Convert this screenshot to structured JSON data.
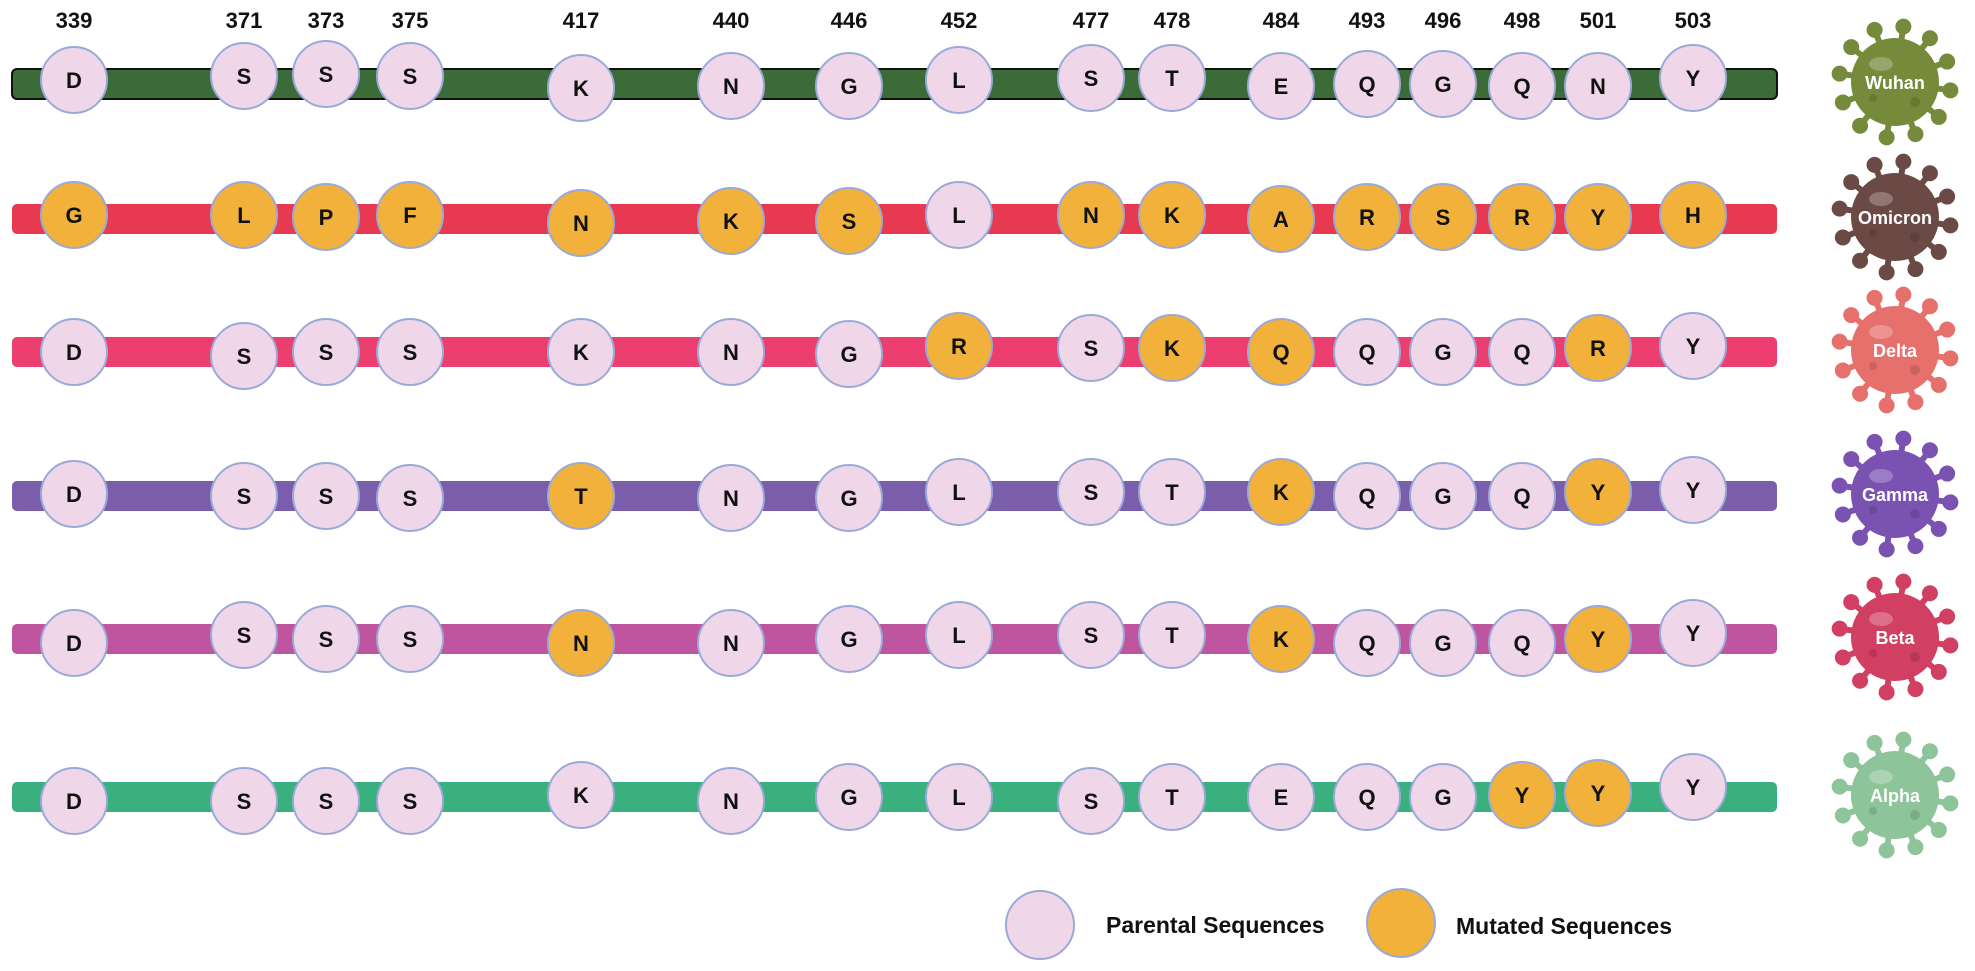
{
  "positions": [
    "339",
    "371",
    "373",
    "375",
    "417",
    "440",
    "446",
    "452",
    "477",
    "478",
    "484",
    "493",
    "496",
    "498",
    "501",
    "503"
  ],
  "variants": [
    {
      "name": "Wuhan",
      "bar_color": "#3b6b37",
      "virus_color": "#758a3a",
      "residues": [
        "D",
        "S",
        "S",
        "S",
        "K",
        "N",
        "G",
        "L",
        "S",
        "T",
        "E",
        "Q",
        "G",
        "Q",
        "N",
        "Y"
      ],
      "mutated": [
        false,
        false,
        false,
        false,
        false,
        false,
        false,
        false,
        false,
        false,
        false,
        false,
        false,
        false,
        false,
        false
      ]
    },
    {
      "name": "Omicron",
      "bar_color": "#e73a50",
      "virus_color": "#6b4a45",
      "residues": [
        "G",
        "L",
        "P",
        "F",
        "N",
        "K",
        "S",
        "L",
        "N",
        "K",
        "A",
        "R",
        "S",
        "R",
        "Y",
        "H"
      ],
      "mutated": [
        true,
        true,
        true,
        true,
        true,
        true,
        true,
        false,
        true,
        true,
        true,
        true,
        true,
        true,
        true,
        true
      ]
    },
    {
      "name": "Delta",
      "bar_color": "#ec3f70",
      "virus_color": "#e5706c",
      "residues": [
        "D",
        "S",
        "S",
        "S",
        "K",
        "N",
        "G",
        "R",
        "S",
        "K",
        "Q",
        "Q",
        "G",
        "Q",
        "R",
        "Y"
      ],
      "mutated": [
        false,
        false,
        false,
        false,
        false,
        false,
        false,
        true,
        false,
        true,
        true,
        false,
        false,
        false,
        true,
        false
      ]
    },
    {
      "name": "Gamma",
      "bar_color": "#7b5eab",
      "virus_color": "#7a52b2",
      "residues": [
        "D",
        "S",
        "S",
        "S",
        "T",
        "N",
        "G",
        "L",
        "S",
        "T",
        "K",
        "Q",
        "G",
        "Q",
        "Y",
        "Y"
      ],
      "mutated": [
        false,
        false,
        false,
        false,
        true,
        false,
        false,
        false,
        false,
        false,
        true,
        false,
        false,
        false,
        true,
        false
      ]
    },
    {
      "name": "Beta",
      "bar_color": "#c0559f",
      "virus_color": "#d13f62",
      "residues": [
        "D",
        "S",
        "S",
        "S",
        "N",
        "N",
        "G",
        "L",
        "S",
        "T",
        "K",
        "Q",
        "G",
        "Q",
        "Y",
        "Y"
      ],
      "mutated": [
        false,
        false,
        false,
        false,
        true,
        false,
        false,
        false,
        false,
        false,
        true,
        false,
        false,
        false,
        true,
        false
      ]
    },
    {
      "name": "Alpha",
      "bar_color": "#3bb07f",
      "virus_color": "#8ec49a",
      "residues": [
        "D",
        "S",
        "S",
        "S",
        "K",
        "N",
        "G",
        "L",
        "S",
        "T",
        "E",
        "Q",
        "G",
        "Y",
        "Y",
        "Y"
      ],
      "mutated": [
        false,
        false,
        false,
        false,
        false,
        false,
        false,
        false,
        false,
        false,
        false,
        false,
        false,
        true,
        true,
        false
      ]
    }
  ],
  "legend": {
    "parental_label": "Parental Sequences",
    "mutated_label": "Mutated Sequences",
    "parental_color": "#efd7e9",
    "mutated_color": "#f2b13b",
    "outline_color": "#9aaad8"
  }
}
